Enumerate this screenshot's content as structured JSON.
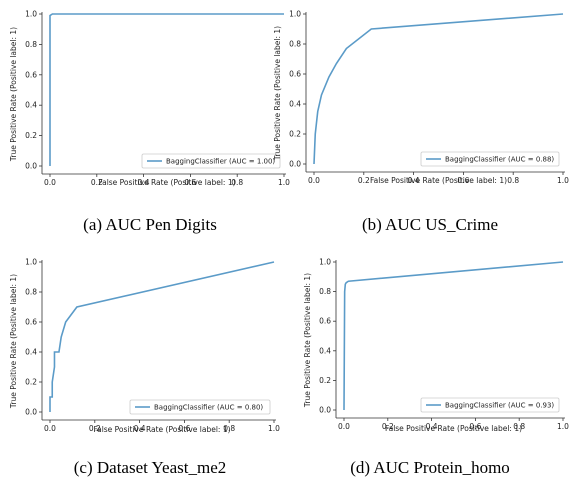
{
  "captions": [
    "(a) AUC Pen Digits",
    "(b) AUC US_Crime",
    "(c) Dataset Yeast_me2",
    "(d) AUC Protein_homo"
  ],
  "colors": {
    "line": "#5b9bc8",
    "axis": "#333333",
    "frame": "#333333"
  },
  "chart_data": [
    {
      "type": "line",
      "xlabel": "False Positive Rate (Positive label: 1)",
      "ylabel": "True Positive Rate (Positive label: 1)",
      "xlim": [
        0,
        1
      ],
      "ylim": [
        0,
        1
      ],
      "xticks": [
        "0.0",
        "0.2",
        "0.4",
        "0.6",
        "0.8",
        "1.0"
      ],
      "yticks": [
        "0.0",
        "0.2",
        "0.4",
        "0.6",
        "0.8",
        "1.0"
      ],
      "legend_position": "bottom-right",
      "series": [
        {
          "name": "BaggingClassifier (AUC = 1.00)",
          "x": [
            0.0,
            0.0,
            0.01,
            1.0
          ],
          "y": [
            0.0,
            0.99,
            1.0,
            1.0
          ]
        }
      ]
    },
    {
      "type": "line",
      "xlabel": "False Positive Rate (Positive label: 1)",
      "ylabel": "True Positive Rate (Positive label: 1)",
      "xlim": [
        0,
        1
      ],
      "ylim": [
        0,
        1
      ],
      "xticks": [
        "0.0",
        "0.2",
        "0.4",
        "0.6",
        "0.8",
        "1.0"
      ],
      "yticks": [
        "0.0",
        "0.2",
        "0.4",
        "0.6",
        "0.8",
        "1.0"
      ],
      "legend_position": "bottom-right",
      "series": [
        {
          "name": "BaggingClassifier (AUC = 0.88)",
          "x": [
            0.0,
            0.005,
            0.015,
            0.03,
            0.06,
            0.09,
            0.13,
            0.23,
            1.0
          ],
          "y": [
            0.0,
            0.2,
            0.35,
            0.46,
            0.58,
            0.67,
            0.77,
            0.9,
            1.0
          ]
        }
      ]
    },
    {
      "type": "line",
      "xlabel": "False Positive Rate (Positive label: 1)",
      "ylabel": "True Positive Rate (Positive label: 1)",
      "xlim": [
        0,
        1
      ],
      "ylim": [
        0,
        1
      ],
      "xticks": [
        "0.0",
        "0.2",
        "0.4",
        "0.6",
        "0.8",
        "1.0"
      ],
      "yticks": [
        "0.0",
        "0.2",
        "0.4",
        "0.6",
        "0.8",
        "1.0"
      ],
      "legend_position": "bottom-right",
      "series": [
        {
          "name": "BaggingClassifier (AUC = 0.80)",
          "x": [
            0.0,
            0.0,
            0.01,
            0.01,
            0.02,
            0.02,
            0.03,
            0.04,
            0.05,
            0.07,
            0.12,
            1.0
          ],
          "y": [
            0.0,
            0.1,
            0.1,
            0.2,
            0.3,
            0.4,
            0.4,
            0.4,
            0.5,
            0.6,
            0.7,
            1.0
          ]
        }
      ]
    },
    {
      "type": "line",
      "xlabel": "False Positive Rate (Positive label: 1)",
      "ylabel": "True Positive Rate (Positive label: 1)",
      "xlim": [
        0,
        1
      ],
      "ylim": [
        0,
        1
      ],
      "xticks": [
        "0.0",
        "0.2",
        "0.4",
        "0.6",
        "0.8",
        "1.0"
      ],
      "yticks": [
        "0.0",
        "0.2",
        "0.4",
        "0.6",
        "0.8",
        "1.0"
      ],
      "legend_position": "bottom-right",
      "series": [
        {
          "name": "BaggingClassifier (AUC = 0.93)",
          "x": [
            0.0,
            0.003,
            0.006,
            0.01,
            0.02,
            1.0
          ],
          "y": [
            0.0,
            0.8,
            0.85,
            0.86,
            0.87,
            1.0
          ]
        }
      ]
    }
  ]
}
